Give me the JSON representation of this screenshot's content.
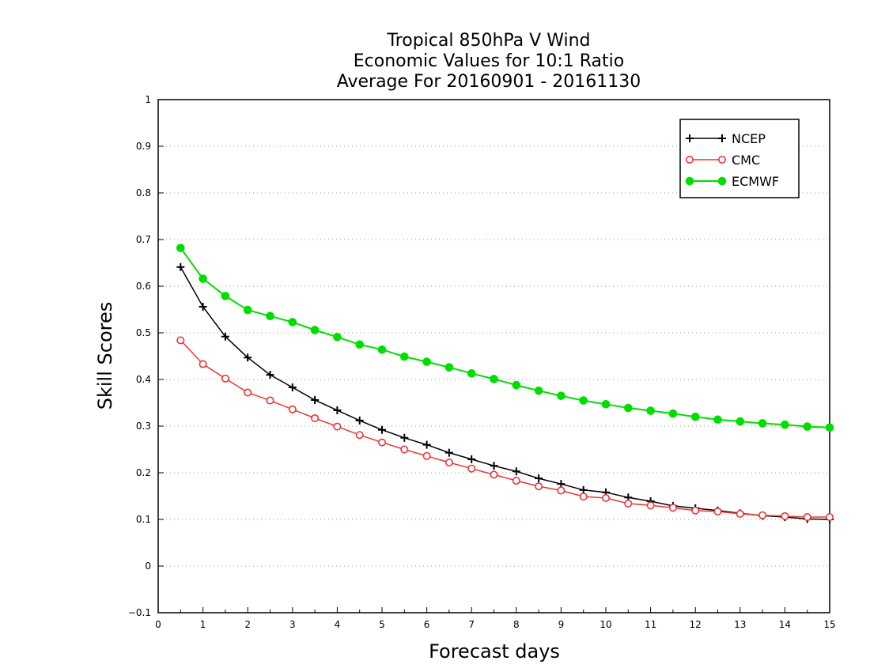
{
  "chart_data": {
    "type": "line",
    "title": [
      "Tropical 850hPa V Wind",
      "Economic Values for 10:1 Ratio",
      "Average For 20160901 - 20161130"
    ],
    "xlabel": "Forecast days",
    "ylabel": "Skill Scores",
    "xlim": [
      0,
      15
    ],
    "ylim": [
      -0.1,
      1
    ],
    "xticks": [
      "0",
      "1",
      "2",
      "3",
      "4",
      "5",
      "6",
      "7",
      "8",
      "9",
      "10",
      "11",
      "12",
      "13",
      "14",
      "15"
    ],
    "yticks": [
      "−0.1",
      "0",
      "0.1",
      "0.2",
      "0.3",
      "0.4",
      "0.5",
      "0.6",
      "0.7",
      "0.8",
      "0.9",
      "1"
    ],
    "grid": "horizontal dotted",
    "legend_position": "top-right",
    "x": [
      0.5,
      1,
      1.5,
      2,
      2.5,
      3,
      3.5,
      4,
      4.5,
      5,
      5.5,
      6,
      6.5,
      7,
      7.5,
      8,
      8.5,
      9,
      9.5,
      10,
      10.5,
      11,
      11.5,
      12,
      12.5,
      13,
      13.5,
      14,
      14.5,
      15
    ],
    "series": [
      {
        "name": "NCEP",
        "color": "#000000",
        "marker": "plus",
        "values": [
          0.641,
          0.556,
          0.492,
          0.447,
          0.41,
          0.383,
          0.356,
          0.334,
          0.312,
          0.292,
          0.275,
          0.26,
          0.243,
          0.229,
          0.215,
          0.203,
          0.188,
          0.176,
          0.163,
          0.158,
          0.147,
          0.139,
          0.129,
          0.124,
          0.119,
          0.113,
          0.108,
          0.105,
          0.101,
          0.1
        ]
      },
      {
        "name": "CMC",
        "color": "#ee3333",
        "marker": "open-circle",
        "values": [
          0.484,
          0.433,
          0.402,
          0.372,
          0.355,
          0.336,
          0.317,
          0.299,
          0.281,
          0.265,
          0.25,
          0.236,
          0.222,
          0.209,
          0.196,
          0.183,
          0.171,
          0.162,
          0.149,
          0.146,
          0.134,
          0.13,
          0.125,
          0.119,
          0.117,
          0.112,
          0.109,
          0.107,
          0.105,
          0.105
        ]
      },
      {
        "name": "ECMWF",
        "color": "#00dd00",
        "marker": "filled-circle",
        "values": [
          0.682,
          0.616,
          0.579,
          0.549,
          0.536,
          0.523,
          0.506,
          0.491,
          0.475,
          0.464,
          0.449,
          0.438,
          0.426,
          0.413,
          0.401,
          0.388,
          0.376,
          0.365,
          0.355,
          0.347,
          0.339,
          0.333,
          0.327,
          0.32,
          0.314,
          0.31,
          0.306,
          0.303,
          0.299,
          0.297
        ]
      }
    ]
  }
}
